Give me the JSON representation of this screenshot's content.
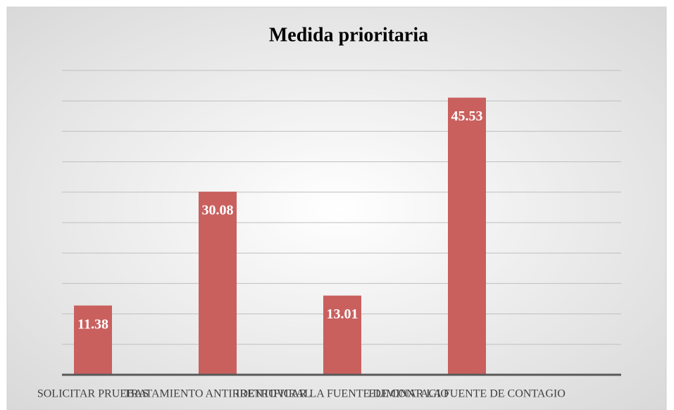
{
  "chart_data": {
    "type": "bar",
    "title": "Medida prioritaria",
    "categories": [
      "SOLICITAR PRUEBAS",
      "TRATAMIENTO ANTIRRETROVIRAL",
      "IDENTIFICAR LA FUENTE DE CONTAGIO",
      "ELIMINAR LA FUENTE DE CONTAGIO"
    ],
    "values": [
      11.38,
      30.08,
      13.01,
      45.53
    ],
    "color": "#c9605e",
    "ylim": [
      0,
      50
    ],
    "yticks": [
      0,
      5,
      10,
      15,
      20,
      25,
      30,
      35,
      40,
      45,
      50
    ],
    "grid": true
  }
}
